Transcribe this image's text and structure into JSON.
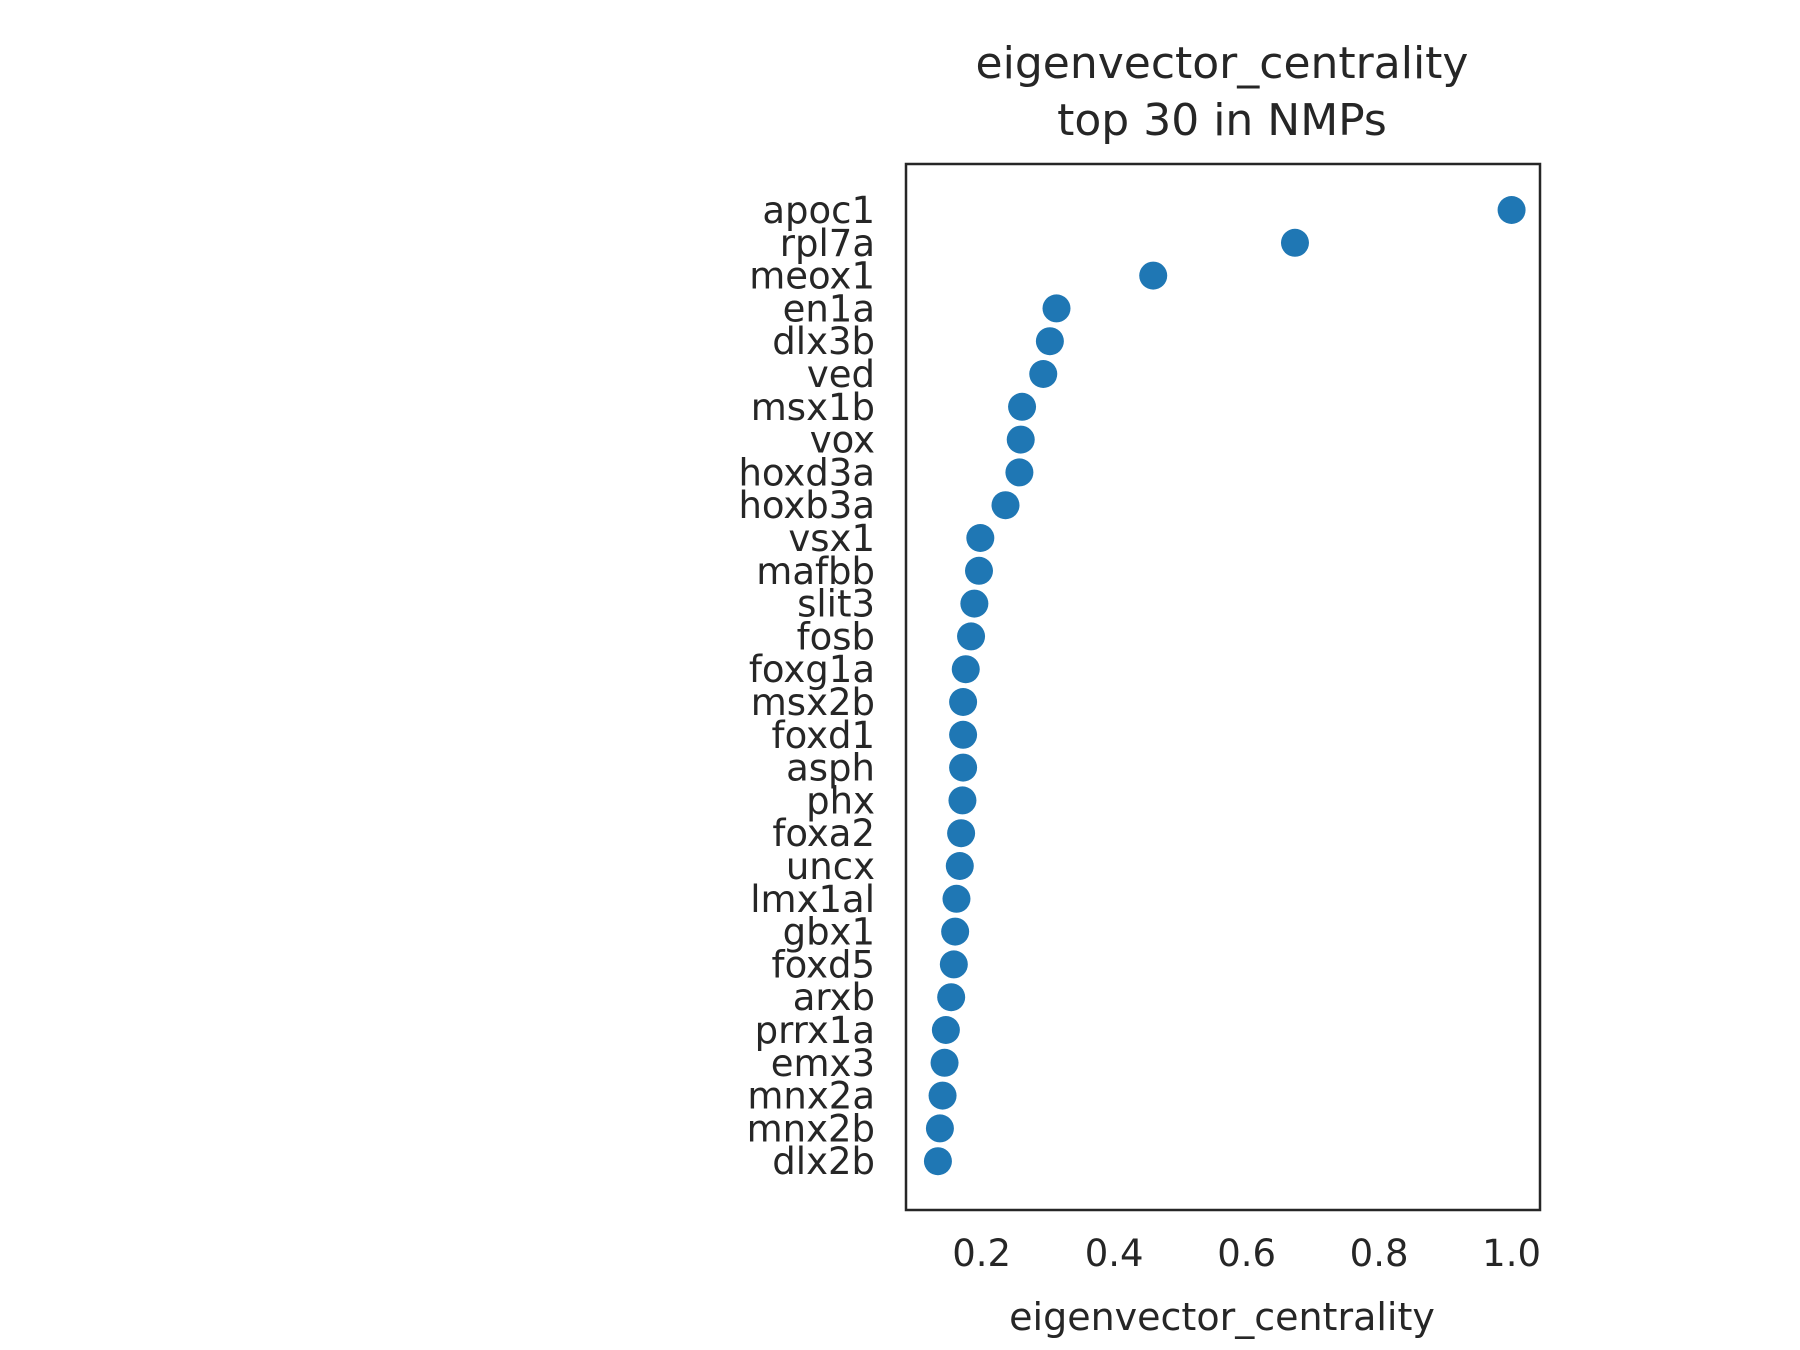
{
  "chart_data": {
    "type": "scatter",
    "title_lines": [
      "eigenvector_centrality",
      "top 30 in NMPs"
    ],
    "xlabel": "eigenvector_centrality",
    "ylabel": "",
    "xlim": [
      0.0858,
      1.0429
    ],
    "xticks": [
      0.2,
      0.4,
      0.6,
      0.8,
      1.0
    ],
    "xtick_labels": [
      "0.2",
      "0.4",
      "0.6",
      "0.8",
      "1.0"
    ],
    "grid": false,
    "marker_color": "#1f77b4",
    "categories": [
      "apoc1",
      "rpl7a",
      "meox1",
      "en1a",
      "dlx3b",
      "ved",
      "msx1b",
      "vox",
      "hoxd3a",
      "hoxb3a",
      "vsx1",
      "mafbb",
      "slit3",
      "fosb",
      "foxg1a",
      "msx2b",
      "foxd1",
      "asph",
      "phx",
      "foxa2",
      "uncx",
      "lmx1al",
      "gbx1",
      "foxd5",
      "arxb",
      "prrx1a",
      "emx3",
      "mnx2a",
      "mnx2b",
      "dlx2b"
    ],
    "values": [
      1.0,
      0.673,
      0.459,
      0.313,
      0.303,
      0.293,
      0.261,
      0.259,
      0.257,
      0.236,
      0.198,
      0.196,
      0.189,
      0.184,
      0.176,
      0.172,
      0.172,
      0.172,
      0.171,
      0.169,
      0.167,
      0.162,
      0.16,
      0.158,
      0.154,
      0.146,
      0.144,
      0.141,
      0.137,
      0.134
    ]
  }
}
